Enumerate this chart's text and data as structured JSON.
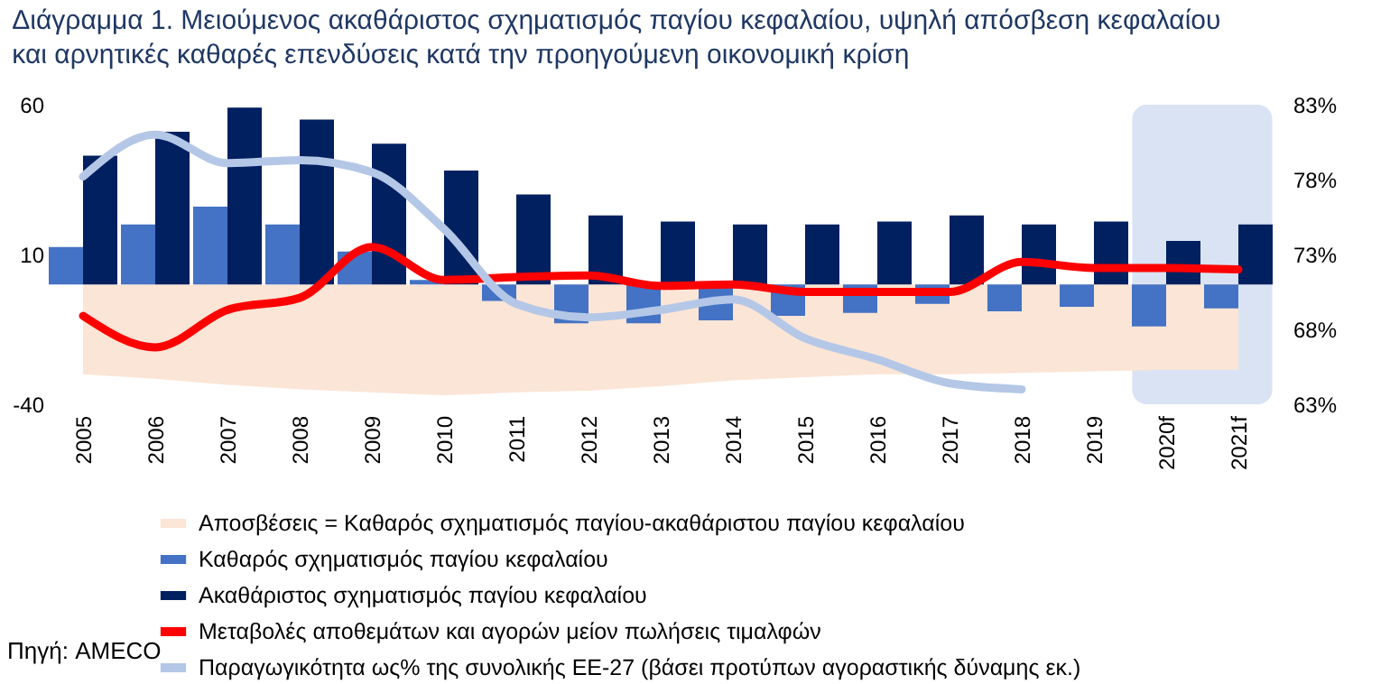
{
  "chart_data": {
    "type": "bar",
    "title": "Διάγραμμα 1. Μειούμενος ακαθάριστος σχηματισμός παγίου κεφαλαίου, υψηλή απόσβεση κεφαλαίου και αρνητικές καθαρές επενδύσεις κατά την προηγούμενη οικονομική κρίση",
    "categories": [
      "2005",
      "2006",
      "2007",
      "2008",
      "2009",
      "2010",
      "2011",
      "2012",
      "2013",
      "2014",
      "2015",
      "2016",
      "2017",
      "2018",
      "2019",
      "2020f",
      "2021f"
    ],
    "series": [
      {
        "name": "Αποσβέσεις = Καθαρός σχηματισμός παγίου-ακαθάριστου παγίου κεφαλαίου",
        "type": "area",
        "color": "#fbe5d6",
        "values": [
          -30,
          -31.5,
          -33.5,
          -35,
          -36,
          -37,
          -36,
          -35.5,
          -34,
          -32,
          -31,
          -30,
          -30,
          -29.5,
          -29,
          -28.5,
          -28.5
        ]
      },
      {
        "name": "Καθαρός σχηματισμός παγίου κεφαλαίου",
        "color": "#4472c4",
        "values": [
          12.5,
          20,
          26,
          20,
          11,
          1.5,
          -5.5,
          -13,
          -13,
          -12,
          -10.5,
          -9.5,
          -6.5,
          -9,
          -7.5,
          -14,
          -8
        ]
      },
      {
        "name": "Ακαθάριστος σχηματισμός παγίου κεφαλαίου",
        "color": "#002060",
        "values": [
          43,
          51,
          59,
          55,
          47,
          38,
          30,
          23,
          21,
          20,
          20,
          21,
          23,
          20,
          21,
          14.5,
          20
        ]
      },
      {
        "name": "Μεταβολές αποθεμάτων και αγορών μείον πωλήσεις τιμαλφών",
        "type": "line",
        "color": "#ff0000",
        "values": [
          -10.5,
          -21,
          -8.5,
          -4.5,
          12.5,
          1.5,
          2.5,
          3,
          -0.5,
          0,
          -2.5,
          -2.5,
          -2.5,
          7.5,
          5.5,
          5.5,
          5
        ]
      },
      {
        "name": "Παραγωγικότητα ως% της συνολικής ΕΕ-27 (βάσει προτύπων αγοραστικής δύναμης εκ.)",
        "type": "line",
        "axis": "y2",
        "color": "#b4c7e7",
        "values": [
          78.2,
          81,
          79.1,
          79.3,
          78.5,
          74.7,
          69.7,
          68.8,
          69.3,
          70,
          67.4,
          66,
          64.4,
          64,
          null,
          null,
          null
        ]
      }
    ],
    "ylim": [
      -40,
      60
    ],
    "yticks": [
      -40,
      10,
      60
    ],
    "y2lim": [
      63,
      83
    ],
    "y2ticks": [
      {
        "value": 63,
        "label": "63%"
      },
      {
        "value": 68,
        "label": "68%"
      },
      {
        "value": 73,
        "label": "73%"
      },
      {
        "value": 78,
        "label": "78%"
      },
      {
        "value": 83,
        "label": "83%"
      }
    ],
    "bands": [
      {
        "axis": "x",
        "from": "2020f",
        "to": "2021f",
        "color": "#dae3f3"
      }
    ],
    "legend": "bottom",
    "annotations": [
      "Πηγή: AMECO"
    ]
  }
}
